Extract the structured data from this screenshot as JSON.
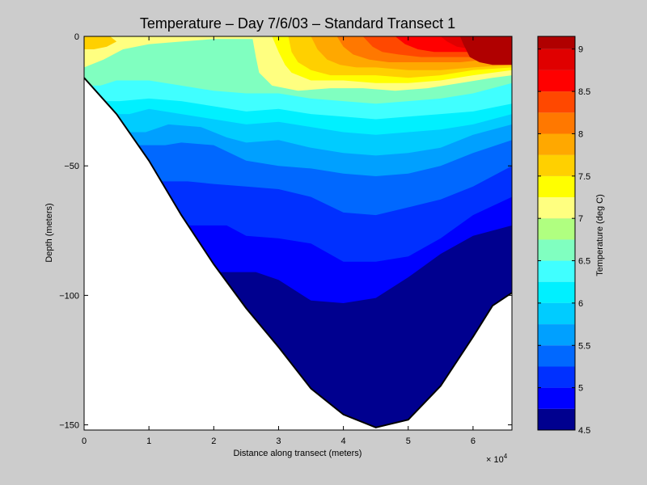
{
  "chart_data": {
    "type": "heatmap",
    "subtype": "filled-contour",
    "title": "Temperature – Day 7/6/03 – Standard Transect 1",
    "xlabel": "Distance along transect (meters)",
    "ylabel": "Depth (meters)",
    "x_exponent_label": "× 10",
    "x_exponent_power": "4",
    "x_scale_factor": 10000,
    "xlim": [
      0,
      6.6
    ],
    "ylim": [
      -152,
      0
    ],
    "xticks": [
      0,
      1,
      2,
      3,
      4,
      5,
      6
    ],
    "xtick_labels": [
      "0",
      "1",
      "2",
      "3",
      "4",
      "5",
      "6"
    ],
    "yticks": [
      0,
      -50,
      -100,
      -150
    ],
    "ytick_labels": [
      "0",
      "−50",
      "−100",
      "−150"
    ],
    "colorbar": {
      "label": "Temperature (deg C)",
      "range": [
        4.5,
        9.15
      ],
      "ticks": [
        4.5,
        5,
        5.5,
        6,
        6.5,
        7,
        7.5,
        8,
        8.5,
        9
      ],
      "tick_labels": [
        "4.5",
        "5",
        "5.5",
        "6",
        "6.5",
        "7",
        "7.5",
        "8",
        "8.5",
        "9"
      ],
      "levels": [
        4.5,
        4.75,
        5.0,
        5.25,
        5.5,
        5.75,
        6.0,
        6.25,
        6.5,
        6.75,
        7.0,
        7.25,
        7.5,
        7.75,
        8.0,
        8.25,
        8.5,
        8.75,
        9.0,
        9.15
      ],
      "colors": [
        "#00008f",
        "#0000ff",
        "#0030ff",
        "#0068ff",
        "#00a0ff",
        "#00ccff",
        "#00f0ff",
        "#40ffff",
        "#80ffc0",
        "#b0ff80",
        "#ffff80",
        "#ffff00",
        "#ffd000",
        "#ffa800",
        "#ff7800",
        "#ff4800",
        "#ff0000",
        "#e00000",
        "#b00000"
      ]
    },
    "seabed_profile": {
      "x": [
        0,
        0.5,
        1.0,
        1.5,
        2.0,
        2.5,
        3.0,
        3.5,
        4.0,
        4.5,
        5.0,
        5.5,
        6.0,
        6.3,
        6.6
      ],
      "depth": [
        -16,
        -30,
        -48,
        -69,
        -88,
        -105,
        -120,
        -136,
        -146,
        -151,
        -148,
        -135,
        -116,
        -104,
        -99
      ]
    },
    "isotherms": [
      {
        "level": 4.75,
        "x": [
          2.65,
          3.0,
          3.5,
          4.0,
          4.5,
          5.0,
          5.5,
          6.0,
          6.6
        ],
        "depth": [
          -91,
          -94,
          -102,
          -103,
          -101,
          -93,
          -84,
          -77,
          -73
        ]
      },
      {
        "level": 5.0,
        "x": [
          2.2,
          2.5,
          3.0,
          3.5,
          4.0,
          4.5,
          5.0,
          5.5,
          6.0,
          6.6
        ],
        "depth": [
          -73,
          -77,
          -78,
          -80,
          -87,
          -87,
          -85,
          -78,
          -69,
          -62
        ]
      },
      {
        "level": 5.25,
        "x": [
          1.6,
          2.0,
          2.5,
          3.0,
          3.5,
          4.0,
          4.5,
          5.0,
          5.5,
          6.0,
          6.6
        ],
        "depth": [
          -56,
          -57,
          -58,
          -59,
          -62,
          -68,
          -69,
          -66,
          -63,
          -58,
          -50
        ]
      },
      {
        "level": 5.5,
        "x": [
          1.25,
          1.5,
          2.0,
          2.5,
          3.0,
          3.5,
          4.0,
          4.5,
          5.0,
          5.5,
          6.0,
          6.6
        ],
        "depth": [
          -42,
          -41,
          -42,
          -48,
          -50,
          -51,
          -53,
          -54,
          -53,
          -50,
          -45,
          -40
        ]
      },
      {
        "level": 5.75,
        "x": [
          0.95,
          1.3,
          1.8,
          2.2,
          2.5,
          3.0,
          3.5,
          4.0,
          4.5,
          5.0,
          5.5,
          6.0,
          6.6
        ],
        "depth": [
          -37,
          -34,
          -35,
          -39,
          -41,
          -40,
          -43,
          -45,
          -46,
          -45,
          -43,
          -38,
          -34
        ]
      },
      {
        "level": 6.0,
        "x": [
          0.7,
          1.0,
          1.5,
          2.0,
          2.5,
          3.0,
          3.5,
          4.0,
          4.5,
          5.0,
          5.5,
          6.0,
          6.6
        ],
        "depth": [
          -30,
          -28,
          -30,
          -32,
          -34,
          -33,
          -35,
          -37,
          -38,
          -37,
          -36,
          -34,
          -30
        ]
      },
      {
        "level": 6.25,
        "x": [
          0.55,
          1.0,
          1.5,
          2.0,
          2.5,
          3.0,
          3.5,
          4.0,
          4.5,
          5.0,
          5.5,
          6.0,
          6.6
        ],
        "depth": [
          -25,
          -24,
          -25,
          -27,
          -29,
          -28,
          -30,
          -31,
          -32,
          -31,
          -30,
          -29,
          -26
        ]
      },
      {
        "level": 6.5,
        "x": [
          0.25,
          0.5,
          1.0,
          1.5,
          2.0,
          2.5,
          3.0,
          3.5,
          4.0,
          4.5,
          5.0,
          5.5,
          6.0,
          6.6
        ],
        "depth": [
          -19,
          -17,
          -17,
          -19,
          -21,
          -22,
          -22,
          -24,
          -25,
          -26,
          -25,
          -24,
          -22,
          -18
        ]
      }
    ],
    "warm_isotherms": [
      {
        "level": 7.0,
        "x": [
          0,
          0.3,
          0.6,
          1.0,
          1.5,
          2.0,
          2.6,
          2.65,
          2.7,
          2.9,
          3.3,
          3.8,
          4.3,
          4.8,
          5.3,
          5.8,
          6.3,
          6.6
        ],
        "depth": [
          -12,
          -9,
          -5,
          -3,
          -2,
          -1,
          -1,
          -8,
          -14,
          -19,
          -21,
          -20,
          -20,
          -21,
          -20,
          -18,
          -16,
          -15
        ]
      },
      {
        "level": 7.25,
        "x": [
          2.9,
          3.0,
          3.1,
          3.2,
          3.5,
          4.0,
          4.5,
          5.0,
          5.5,
          6.0,
          6.6
        ],
        "depth": [
          0,
          -6,
          -11,
          -14,
          -17,
          -17,
          -18,
          -18,
          -17,
          -15,
          -13
        ]
      },
      {
        "level": 7.5,
        "x": [
          3.15,
          3.2,
          3.3,
          3.5,
          3.8,
          4.2,
          4.5,
          5.0,
          5.5,
          6.0,
          6.6
        ],
        "depth": [
          0,
          -6,
          -10,
          -13,
          -15,
          -15,
          -15,
          -16,
          -15,
          -13,
          -12
        ]
      },
      {
        "level": 7.75,
        "x": [
          3.5,
          3.6,
          3.75,
          3.95,
          4.2,
          4.5,
          5.0,
          5.5,
          6.0,
          6.6
        ],
        "depth": [
          0,
          -5,
          -9,
          -11,
          -12,
          -12,
          -13,
          -13,
          -12,
          -11
        ]
      },
      {
        "level": 8.0,
        "x": [
          3.9,
          4.0,
          4.15,
          4.4,
          4.7,
          5.0,
          5.4,
          5.8,
          6.2,
          6.6
        ],
        "depth": [
          0,
          -4,
          -7,
          -9,
          -10,
          -10,
          -10,
          -10,
          -9,
          -9
        ]
      },
      {
        "level": 8.25,
        "x": [
          4.3,
          4.45,
          4.6,
          4.85,
          5.2,
          5.6,
          6.0,
          6.6
        ],
        "depth": [
          0,
          -4,
          -6,
          -7,
          -8,
          -8,
          -8,
          -7
        ]
      },
      {
        "level": 8.5,
        "x": [
          4.8,
          4.95,
          5.15,
          5.4,
          5.8,
          6.2,
          6.6
        ],
        "depth": [
          0,
          -3,
          -5,
          -6,
          -6,
          -6,
          -6
        ]
      },
      {
        "level": 8.75,
        "x": [
          5.5,
          5.6,
          5.75,
          6.0,
          6.3,
          6.6
        ],
        "depth": [
          0,
          -2,
          -4,
          -5,
          -5,
          -5
        ]
      },
      {
        "level": 9.0,
        "x": [
          5.8,
          5.85,
          5.95,
          6.1,
          6.3,
          6.6
        ],
        "depth": [
          0,
          -3,
          -8,
          -10,
          -11,
          -11
        ]
      }
    ],
    "surface_warm_patch": {
      "level": 7.5,
      "x": [
        0,
        0.2,
        0.4,
        0.5,
        0.35,
        0.15,
        0
      ],
      "depth": [
        0,
        0,
        0,
        -2,
        -4,
        -5,
        -5
      ]
    }
  }
}
